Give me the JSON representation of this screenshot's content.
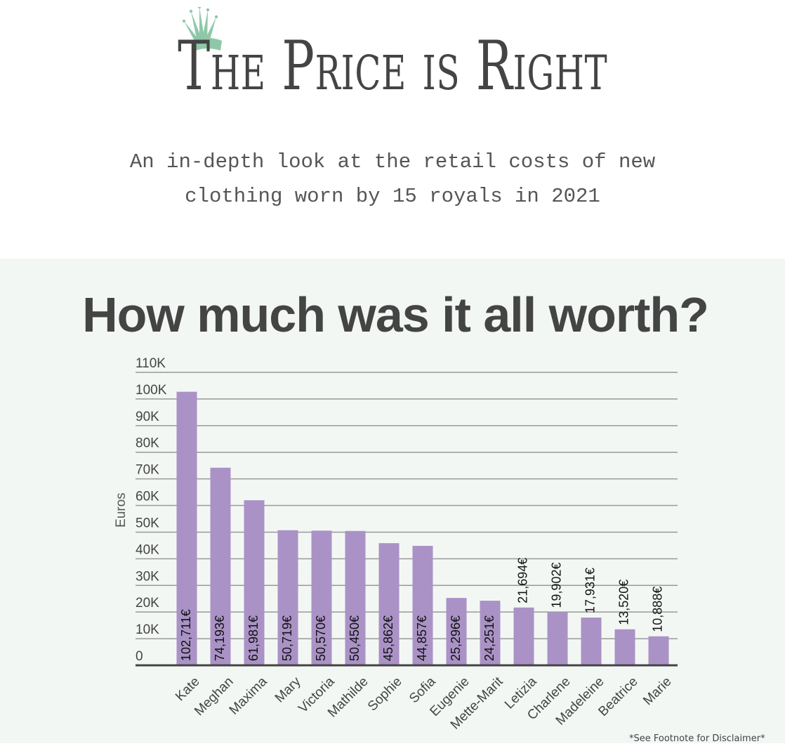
{
  "header": {
    "title": "The Price is Right",
    "subtitle_line1": "An in-depth look at the retail costs of new",
    "subtitle_line2": "clothing worn by 15 royals in 2021",
    "crown_color": "#8fc8a8"
  },
  "panel": {
    "title": "How much was it all worth?",
    "footnote": "*See Footnote for Disclaimer*",
    "background": "#f3f7f4"
  },
  "chart_data": {
    "type": "bar",
    "categories": [
      "Kate",
      "Meghan",
      "Maxima",
      "Mary",
      "Victoria",
      "Mathilde",
      "Sophie",
      "Sofia",
      "Eugenie",
      "Mette-Marit",
      "Letizia",
      "Charlene",
      "Madeleine",
      "Beatrice",
      "Marie"
    ],
    "values": [
      102711,
      74193,
      61981,
      50719,
      50570,
      50450,
      45862,
      44857,
      25296,
      24251,
      21694,
      19902,
      17931,
      13520,
      10888
    ],
    "value_labels": [
      "102,711€",
      "74,193€",
      "61,981€",
      "50,719€",
      "50,570€",
      "50,450€",
      "45,862€",
      "44,857€",
      "25,296€",
      "24,251€",
      "21,694€",
      "19,902€",
      "17,931€",
      "13,520€",
      "10,888€"
    ],
    "ylabel": "Euros",
    "yticks": [
      0,
      10000,
      20000,
      30000,
      40000,
      50000,
      60000,
      70000,
      80000,
      90000,
      100000,
      110000
    ],
    "ytick_labels": [
      "0",
      "10K",
      "20K",
      "30K",
      "40K",
      "50K",
      "60K",
      "70K",
      "80K",
      "90K",
      "100K",
      "110K"
    ],
    "ylim": [
      0,
      110000
    ],
    "grid": true,
    "bar_color": "#aa92c6"
  }
}
